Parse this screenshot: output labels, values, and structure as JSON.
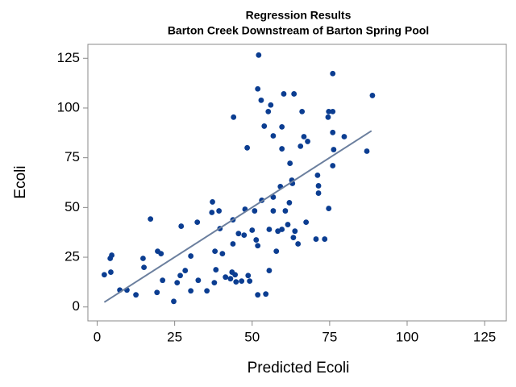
{
  "chart_data": {
    "type": "scatter",
    "title": "Regression Results",
    "subtitle": "Barton Creek Downstream of Barton Spring Pool",
    "x_label": "Predicted Ecoli",
    "y_label": "Ecoli",
    "xlim": [
      -3,
      132
    ],
    "ylim": [
      -7,
      132
    ],
    "xticks": [
      0,
      25,
      50,
      75,
      100,
      125
    ],
    "yticks": [
      0,
      25,
      50,
      75,
      100,
      125
    ],
    "grid": false,
    "series": [
      {
        "color": "#0b3d91",
        "style": "markers",
        "x": [
          2.3,
          4.2,
          4.7,
          4.4,
          7.3,
          9.6,
          12.5,
          14.8,
          15.1,
          17.2,
          19.3,
          19.5,
          20.6,
          21.1,
          24.7,
          25.8,
          26.8,
          27.1,
          28.4,
          30.2,
          30.2,
          32.3,
          32.6,
          35.4,
          37.0,
          37.2,
          37.8,
          38.0,
          38.3,
          39.6,
          40.4,
          41.4,
          43.0,
          43.5,
          43.8,
          43.8,
          44.0,
          44.5,
          44.8,
          45.6,
          46.6,
          47.4,
          48.4,
          48.7,
          49.2,
          50.0,
          50.8,
          51.3,
          51.8,
          51.8,
          51.8,
          52.1,
          52.9,
          53.1,
          53.9,
          54.4,
          55.2,
          55.5,
          55.5,
          56.0,
          56.8,
          56.8,
          56.8,
          58.3,
          59.1,
          59.6,
          59.6,
          59.6,
          60.2,
          60.7,
          61.5,
          62.0,
          62.2,
          62.8,
          63.0,
          63.3,
          63.5,
          63.8,
          64.8,
          65.6,
          66.1,
          66.7,
          67.4,
          67.9,
          70.6,
          71.1,
          71.4,
          71.4,
          73.4,
          74.5,
          74.7,
          74.7,
          76.0,
          76.0,
          76.0,
          76.3,
          76.0,
          79.7,
          87.0,
          88.8,
          47.7,
          39.3,
          57.8
        ],
        "y": [
          16.2,
          24.4,
          26.0,
          17.5,
          8.5,
          8.5,
          6.1,
          24.4,
          19.9,
          44.2,
          7.3,
          28.0,
          26.8,
          13.4,
          2.8,
          12.2,
          15.8,
          40.6,
          18.3,
          8.1,
          25.6,
          42.6,
          13.4,
          8.1,
          47.5,
          52.8,
          12.2,
          28.0,
          18.7,
          39.4,
          26.8,
          15.0,
          14.2,
          17.5,
          31.7,
          43.8,
          95.4,
          16.2,
          12.6,
          36.9,
          13.0,
          36.1,
          80.0,
          15.8,
          13.0,
          38.6,
          48.3,
          33.7,
          6.1,
          30.8,
          109.6,
          126.6,
          103.9,
          53.6,
          90.9,
          6.5,
          98.2,
          39.0,
          18.3,
          101.5,
          55.2,
          86.0,
          48.3,
          38.1,
          60.5,
          79.5,
          90.5,
          39.0,
          107.1,
          48.3,
          41.4,
          52.4,
          72.2,
          63.7,
          62.1,
          34.9,
          107.1,
          38.1,
          31.7,
          80.8,
          98.2,
          85.6,
          42.6,
          83.2,
          34.1,
          66.2,
          60.9,
          57.2,
          34.1,
          95.4,
          98.2,
          49.5,
          98.2,
          117.3,
          87.7,
          79.1,
          71.0,
          85.6,
          78.3,
          106.3,
          49.1,
          48.3,
          28.0
        ]
      },
      {
        "color": "#6b7f9e",
        "style": "line",
        "x": [
          2.3,
          88.5
        ],
        "y": [
          2.4,
          88.5
        ]
      }
    ]
  }
}
